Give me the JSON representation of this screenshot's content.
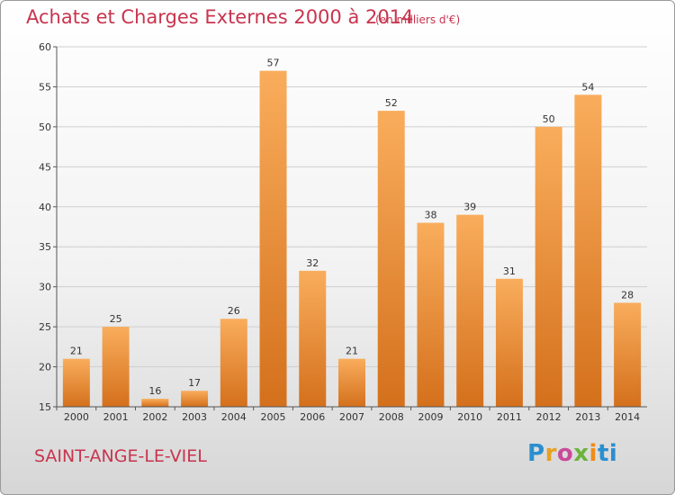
{
  "header": {
    "title": "Achats et Charges Externes 2000 à 2014",
    "subtitle": "(en milliers d'€)"
  },
  "footer": {
    "commune": "SAINT-ANGE-LE-VIEL",
    "logo_letters": [
      "P",
      "r",
      "o",
      "x",
      "i",
      "ti"
    ]
  },
  "colors": {
    "bar_light": "#f9ad5c",
    "bar_dark": "#d4701c",
    "title": "#c8344e",
    "grid": "#cfcfcf"
  },
  "chart_data": {
    "type": "bar",
    "title": "Achats et Charges Externes 2000 à 2014",
    "categories": [
      "2000",
      "2001",
      "2002",
      "2003",
      "2004",
      "2005",
      "2006",
      "2007",
      "2008",
      "2009",
      "2010",
      "2011",
      "2012",
      "2013",
      "2014"
    ],
    "values": [
      21,
      25,
      16,
      17,
      26,
      57,
      32,
      21,
      52,
      38,
      39,
      31,
      50,
      54,
      28
    ],
    "ylim": [
      15,
      60
    ],
    "yticks": [
      15,
      20,
      25,
      30,
      35,
      40,
      45,
      50,
      55,
      60
    ],
    "grid": true,
    "data_labels": true
  }
}
